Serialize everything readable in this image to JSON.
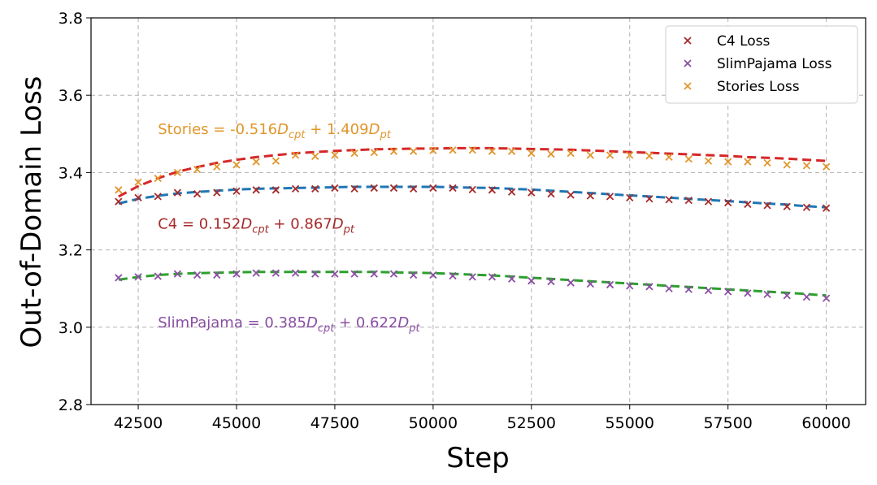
{
  "chart_data": {
    "type": "scatter",
    "title": "",
    "xlabel": "Step",
    "ylabel": "Out-of-Domain Loss",
    "xlim": [
      41300,
      61000
    ],
    "ylim": [
      2.8,
      3.8
    ],
    "xticks": [
      42500,
      45000,
      47500,
      50000,
      52500,
      55000,
      57500,
      60000
    ],
    "xtick_labels": [
      "42500",
      "45000",
      "47500",
      "50000",
      "52500",
      "55000",
      "57500",
      "60000"
    ],
    "yticks": [
      2.8,
      3.0,
      3.2,
      3.4,
      3.6,
      3.8
    ],
    "ytick_labels": [
      "2.8",
      "3.0",
      "3.2",
      "3.4",
      "3.6",
      "3.8"
    ],
    "grid": true,
    "legend_position": "top-right",
    "x": [
      42000,
      42500,
      43000,
      43500,
      44000,
      44500,
      45000,
      45500,
      46000,
      46500,
      47000,
      47500,
      48000,
      48500,
      49000,
      49500,
      50000,
      50500,
      51000,
      51500,
      52000,
      52500,
      53000,
      53500,
      54000,
      54500,
      55000,
      55500,
      56000,
      56500,
      57000,
      57500,
      58000,
      58500,
      59000,
      59500,
      60000
    ],
    "series": [
      {
        "name": "C4 Loss",
        "marker": "x",
        "color": "#a52a2a",
        "values": [
          3.325,
          3.335,
          3.338,
          3.348,
          3.345,
          3.348,
          3.352,
          3.355,
          3.355,
          3.358,
          3.358,
          3.36,
          3.358,
          3.36,
          3.36,
          3.358,
          3.36,
          3.36,
          3.356,
          3.355,
          3.35,
          3.348,
          3.345,
          3.342,
          3.34,
          3.338,
          3.335,
          3.332,
          3.33,
          3.328,
          3.325,
          3.322,
          3.318,
          3.315,
          3.312,
          3.31,
          3.308
        ]
      },
      {
        "name": "SlimPajama Loss",
        "marker": "x",
        "color": "#8a4fa3",
        "values": [
          3.128,
          3.13,
          3.132,
          3.138,
          3.135,
          3.135,
          3.138,
          3.14,
          3.14,
          3.14,
          3.138,
          3.138,
          3.138,
          3.138,
          3.138,
          3.135,
          3.135,
          3.133,
          3.13,
          3.13,
          3.125,
          3.12,
          3.118,
          3.115,
          3.112,
          3.11,
          3.107,
          3.105,
          3.1,
          3.098,
          3.095,
          3.092,
          3.088,
          3.085,
          3.082,
          3.078,
          3.075
        ]
      },
      {
        "name": "Stories Loss",
        "marker": "x",
        "color": "#e0962c",
        "values": [
          3.355,
          3.375,
          3.385,
          3.4,
          3.408,
          3.415,
          3.42,
          3.428,
          3.43,
          3.445,
          3.442,
          3.445,
          3.45,
          3.452,
          3.455,
          3.455,
          3.457,
          3.458,
          3.458,
          3.455,
          3.455,
          3.45,
          3.448,
          3.45,
          3.445,
          3.445,
          3.445,
          3.443,
          3.44,
          3.435,
          3.43,
          3.428,
          3.428,
          3.425,
          3.42,
          3.418,
          3.415
        ]
      }
    ],
    "fit_lines": [
      {
        "name": "Stories fit",
        "color": "#d62728",
        "values": [
          3.338,
          3.365,
          3.385,
          3.402,
          3.414,
          3.425,
          3.433,
          3.44,
          3.445,
          3.45,
          3.453,
          3.456,
          3.458,
          3.46,
          3.461,
          3.462,
          3.462,
          3.463,
          3.463,
          3.463,
          3.462,
          3.461,
          3.46,
          3.459,
          3.457,
          3.455,
          3.453,
          3.451,
          3.449,
          3.447,
          3.445,
          3.443,
          3.44,
          3.438,
          3.436,
          3.433,
          3.43
        ]
      },
      {
        "name": "C4 fit",
        "color": "#1f77b4",
        "values": [
          3.32,
          3.332,
          3.34,
          3.346,
          3.35,
          3.353,
          3.356,
          3.358,
          3.359,
          3.36,
          3.361,
          3.362,
          3.363,
          3.363,
          3.363,
          3.363,
          3.363,
          3.362,
          3.361,
          3.36,
          3.358,
          3.356,
          3.353,
          3.35,
          3.347,
          3.344,
          3.341,
          3.338,
          3.335,
          3.332,
          3.329,
          3.326,
          3.323,
          3.32,
          3.317,
          3.313,
          3.31
        ]
      },
      {
        "name": "SlimPajama fit",
        "color": "#2ca02c",
        "values": [
          3.123,
          3.13,
          3.135,
          3.138,
          3.14,
          3.141,
          3.142,
          3.143,
          3.143,
          3.143,
          3.143,
          3.143,
          3.143,
          3.143,
          3.142,
          3.141,
          3.14,
          3.138,
          3.136,
          3.134,
          3.131,
          3.128,
          3.125,
          3.122,
          3.119,
          3.116,
          3.113,
          3.11,
          3.107,
          3.104,
          3.101,
          3.098,
          3.095,
          3.092,
          3.089,
          3.086,
          3.082
        ]
      }
    ],
    "annotations": [
      {
        "id": "stories",
        "color": "#e0962c",
        "prefix": "Stories = -0.516",
        "d1": "D",
        "sub1": "cpt",
        "mid": " + 1.409",
        "d2": "D",
        "sub2": "pt",
        "x": 43000,
        "y": 3.5
      },
      {
        "id": "c4",
        "color": "#a52a2a",
        "prefix": "C4 = 0.152",
        "d1": "D",
        "sub1": "cpt",
        "mid": " + 0.867",
        "d2": "D",
        "sub2": "pt",
        "x": 43000,
        "y": 3.255
      },
      {
        "id": "slimpajama",
        "color": "#8a4fa3",
        "prefix": "SlimPajama = 0.385",
        "d1": "D",
        "sub1": "cpt",
        "mid": " + 0.622",
        "d2": "D",
        "sub2": "pt",
        "x": 43000,
        "y": 3.0
      }
    ]
  }
}
